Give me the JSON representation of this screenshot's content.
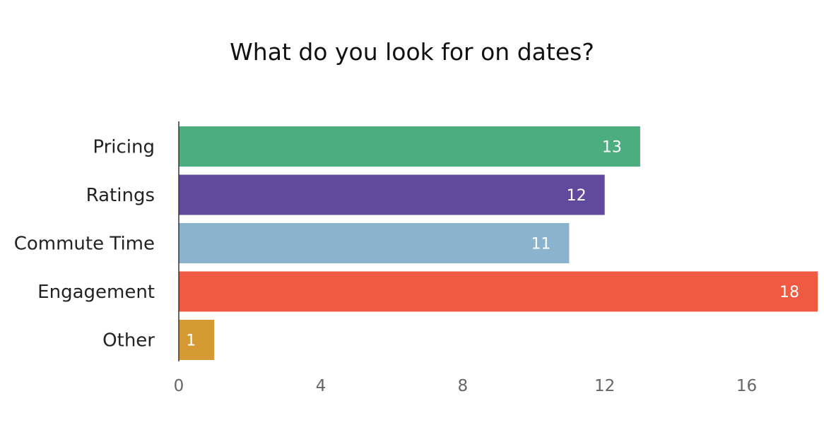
{
  "chart_data": {
    "type": "bar",
    "orientation": "horizontal",
    "title": "What do you look for on dates?",
    "xlabel": "",
    "ylabel": "",
    "categories": [
      "Pricing",
      "Ratings",
      "Commute Time",
      "Engagement",
      "Other"
    ],
    "values": [
      13,
      12,
      11,
      18,
      1
    ],
    "colors": [
      "#4cad7f",
      "#614a9d",
      "#8bb3cd",
      "#f05a42",
      "#d59a34"
    ],
    "xlim": [
      0,
      18
    ],
    "xticks": [
      0,
      4,
      8,
      12,
      16
    ],
    "grid": false,
    "legend": "none",
    "data_labels": true
  }
}
